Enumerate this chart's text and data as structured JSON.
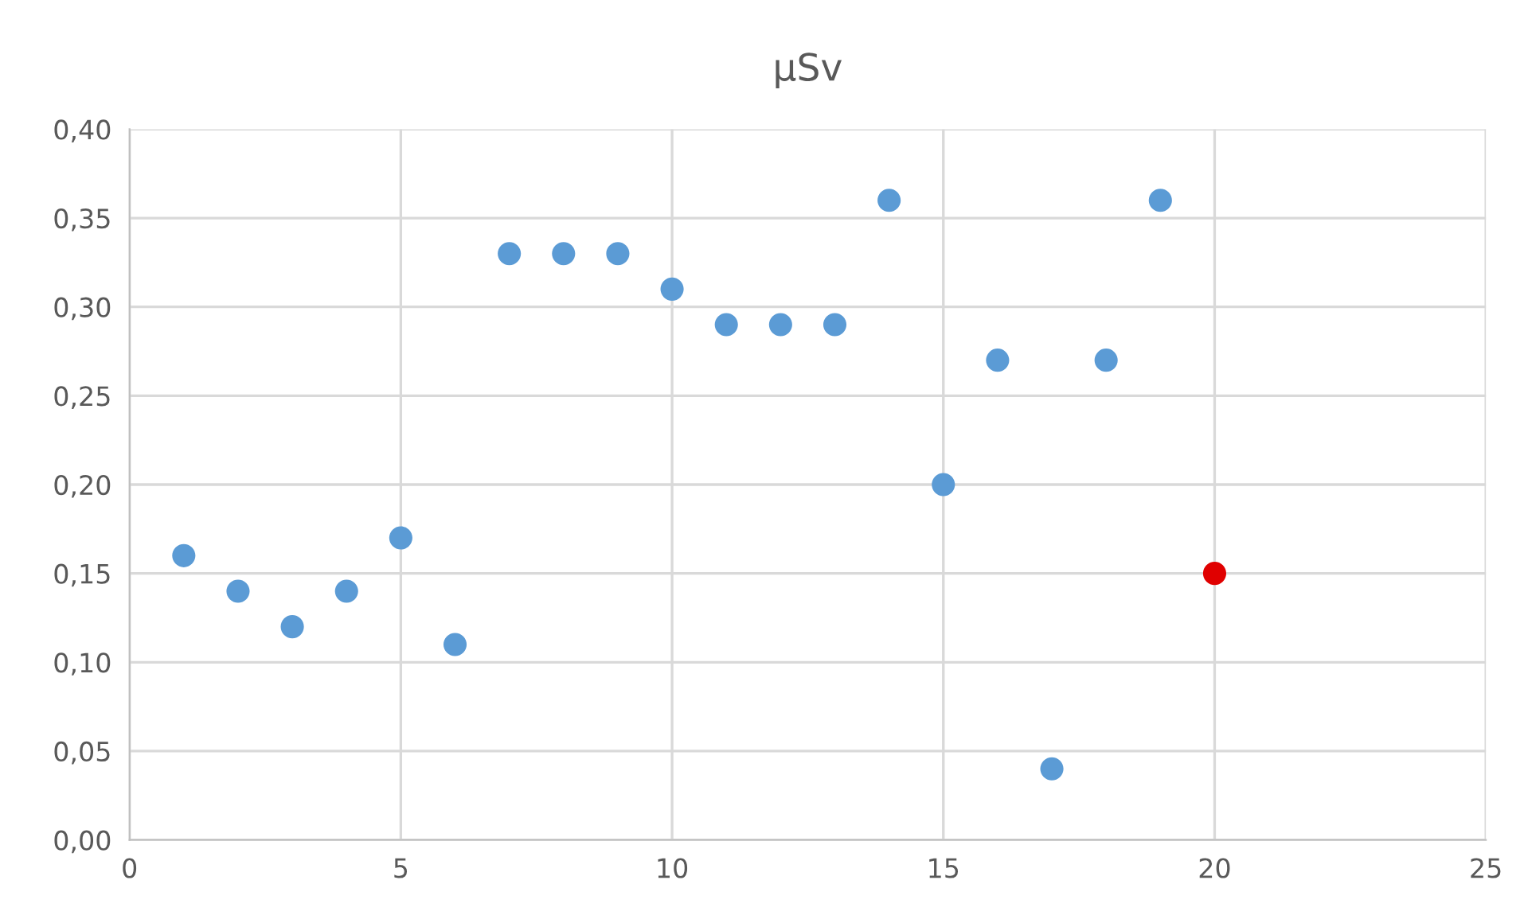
{
  "chart_data": {
    "type": "scatter",
    "title": "µSv",
    "x": [
      1,
      2,
      3,
      4,
      5,
      6,
      7,
      8,
      9,
      10,
      11,
      12,
      13,
      14,
      15,
      16,
      17,
      18,
      19,
      20
    ],
    "values": [
      0.16,
      0.14,
      0.12,
      0.14,
      0.17,
      0.11,
      0.33,
      0.33,
      0.33,
      0.31,
      0.29,
      0.29,
      0.29,
      0.36,
      0.2,
      0.27,
      0.04,
      0.27,
      0.36,
      0.15
    ],
    "colors": [
      "#5b9bd5",
      "#5b9bd5",
      "#5b9bd5",
      "#5b9bd5",
      "#5b9bd5",
      "#5b9bd5",
      "#5b9bd5",
      "#5b9bd5",
      "#5b9bd5",
      "#5b9bd5",
      "#5b9bd5",
      "#5b9bd5",
      "#5b9bd5",
      "#5b9bd5",
      "#5b9bd5",
      "#5b9bd5",
      "#5b9bd5",
      "#5b9bd5",
      "#5b9bd5",
      "#e00000"
    ],
    "xlim": [
      0,
      25
    ],
    "xticks": [
      0,
      5,
      10,
      15,
      20,
      25
    ],
    "ylim": [
      0,
      0.4
    ],
    "yticks": [
      {
        "value": 0,
        "label": "0,00"
      },
      {
        "value": 0.05,
        "label": "0,05"
      },
      {
        "value": 0.1,
        "label": "0,10"
      },
      {
        "value": 0.15,
        "label": "0,15"
      },
      {
        "value": 0.2,
        "label": "0,20"
      },
      {
        "value": 0.25,
        "label": "0,25"
      },
      {
        "value": 0.3,
        "label": "0,30"
      },
      {
        "value": 0.35,
        "label": "0,35"
      },
      {
        "value": 0.4,
        "label": "0,40"
      }
    ],
    "grid": true,
    "marker": "circle"
  }
}
